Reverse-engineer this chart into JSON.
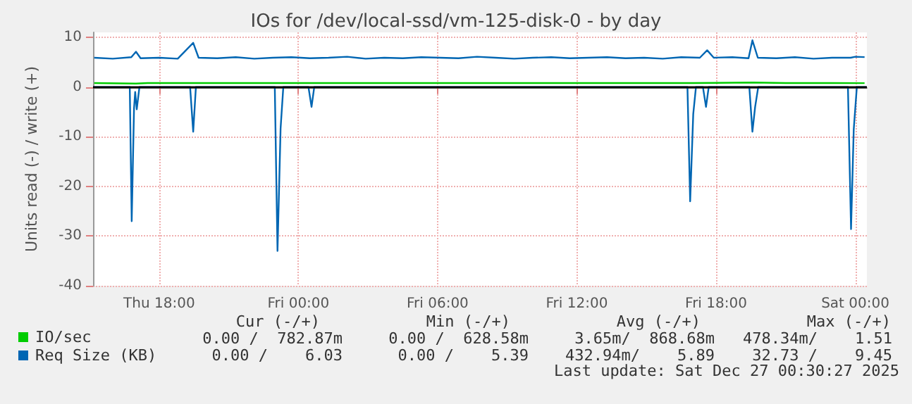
{
  "chart_data": {
    "type": "line",
    "title": "IOs for /dev/local-ssd/vm-125-disk-0 - by day",
    "ylabel": "Units read (-) / write (+)",
    "xlim": [
      "2025-12-25T15:09",
      "2025-12-27T00:30"
    ],
    "xticks": [
      {
        "value": "2025-12-25T18:00",
        "label": "Thu 18:00"
      },
      {
        "value": "2025-12-26T00:00",
        "label": "Fri 00:00"
      },
      {
        "value": "2025-12-26T06:00",
        "label": "Fri 06:00"
      },
      {
        "value": "2025-12-26T12:00",
        "label": "Fri 12:00"
      },
      {
        "value": "2025-12-26T18:00",
        "label": "Fri 18:00"
      },
      {
        "value": "2025-12-27T00:00",
        "label": "Sat 00:00"
      }
    ],
    "ylim": [
      -40,
      11
    ],
    "yticks": [
      -40,
      -30,
      -20,
      -10,
      0,
      10
    ],
    "grid": true,
    "legend": "bottom left",
    "marker": "none",
    "line_style": "solid",
    "ref_lines": [
      {
        "axis": "y",
        "value": 0,
        "color": "#000000"
      }
    ],
    "series": [
      {
        "name": "IO/sec",
        "color": "#00cc00",
        "x": [
          "2025-12-25T15:12",
          "2025-12-25T17:00",
          "2025-12-25T17:30",
          "2025-12-25T19:30",
          "2025-12-25T22:00",
          "2025-12-26T00:30",
          "2025-12-26T03:00",
          "2025-12-26T06:00",
          "2025-12-26T09:00",
          "2025-12-26T12:00",
          "2025-12-26T15:00",
          "2025-12-26T17:00",
          "2025-12-26T19:36",
          "2025-12-26T21:00",
          "2025-12-26T23:00",
          "2025-12-27T00:24"
        ],
        "values": [
          0.8,
          0.7,
          0.8,
          0.8,
          0.8,
          0.8,
          0.8,
          0.8,
          0.8,
          0.8,
          0.8,
          0.8,
          0.9,
          0.8,
          0.8,
          0.78
        ]
      },
      {
        "color": "#0066b3",
        "x": [
          "2025-12-25T15:09",
          "2025-12-25T16:44",
          "2025-12-25T16:49",
          "2025-12-25T16:55",
          "2025-12-25T16:58",
          "2025-12-25T17:02",
          "2025-12-25T17:09",
          "2025-12-25T19:20",
          "2025-12-25T19:28",
          "2025-12-25T19:35",
          "2025-12-25T22:59",
          "2025-12-25T23:06",
          "2025-12-25T23:14",
          "2025-12-25T23:21",
          "2025-12-26T00:26",
          "2025-12-26T00:34",
          "2025-12-26T00:41",
          "2025-12-26T16:46",
          "2025-12-26T16:53",
          "2025-12-26T17:01",
          "2025-12-26T17:08",
          "2025-12-26T17:26",
          "2025-12-26T17:34",
          "2025-12-26T17:41",
          "2025-12-26T19:26",
          "2025-12-26T19:34",
          "2025-12-26T19:41",
          "2025-12-26T19:49",
          "2025-12-26T23:41",
          "2025-12-26T23:49",
          "2025-12-26T23:56",
          "2025-12-27T00:04",
          "2025-12-27T00:29"
        ],
        "values": [
          0,
          0,
          -27,
          -4.3,
          -1,
          -4.5,
          0,
          0,
          -9,
          0,
          0,
          -33,
          -8.3,
          0,
          0,
          -4,
          0,
          0,
          -23,
          -5.4,
          0,
          0,
          -4,
          0,
          0,
          -9,
          -4,
          0,
          0,
          -28.6,
          -8.5,
          0,
          0
        ]
      },
      {
        "name": "Req Size (KB)",
        "color": "#0066b3",
        "x": [
          "2025-12-25T15:12",
          "2025-12-25T16:00",
          "2025-12-25T16:48",
          "2025-12-25T17:00",
          "2025-12-25T17:12",
          "2025-12-25T18:00",
          "2025-12-25T18:48",
          "2025-12-25T19:28",
          "2025-12-25T19:42",
          "2025-12-25T20:30",
          "2025-12-25T21:18",
          "2025-12-25T22:06",
          "2025-12-25T22:54",
          "2025-12-25T23:42",
          "2025-12-26T00:30",
          "2025-12-26T01:18",
          "2025-12-26T02:06",
          "2025-12-26T02:54",
          "2025-12-26T03:42",
          "2025-12-26T04:30",
          "2025-12-26T05:18",
          "2025-12-26T06:06",
          "2025-12-26T06:54",
          "2025-12-26T07:42",
          "2025-12-26T08:30",
          "2025-12-26T09:18",
          "2025-12-26T10:06",
          "2025-12-26T10:54",
          "2025-12-26T11:42",
          "2025-12-26T12:30",
          "2025-12-26T13:18",
          "2025-12-26T14:06",
          "2025-12-26T14:54",
          "2025-12-26T15:42",
          "2025-12-26T16:30",
          "2025-12-26T17:18",
          "2025-12-26T17:37",
          "2025-12-26T17:54",
          "2025-12-26T18:42",
          "2025-12-26T19:24",
          "2025-12-26T19:34",
          "2025-12-26T19:48",
          "2025-12-26T20:36",
          "2025-12-26T21:24",
          "2025-12-26T22:12",
          "2025-12-26T23:00",
          "2025-12-26T23:48",
          "2025-12-27T00:00",
          "2025-12-27T00:24"
        ],
        "values": [
          5.9,
          5.7,
          6.0,
          7.1,
          5.8,
          5.9,
          5.7,
          8.9,
          5.9,
          5.8,
          6.0,
          5.7,
          5.9,
          6.0,
          5.8,
          5.9,
          6.1,
          5.7,
          5.9,
          5.8,
          6.0,
          5.9,
          5.8,
          6.1,
          5.9,
          5.7,
          5.9,
          6.0,
          5.8,
          5.9,
          6.0,
          5.8,
          5.9,
          5.7,
          6.0,
          5.9,
          7.4,
          5.9,
          6.0,
          5.8,
          9.4,
          5.9,
          5.8,
          6.0,
          5.7,
          5.9,
          5.9,
          6.1,
          6.03
        ]
      }
    ],
    "annotations": [
      "Cur (-/+)",
      "Min (-/+)",
      "Avg (-/+)",
      "Max (-/+)",
      "0.00 /  782.87m",
      "0.00 /  628.58m",
      "3.65m/  868.68m",
      "478.34m/    1.51",
      "0.00 /    6.03",
      "0.00 /    5.39",
      "432.94m/    5.89",
      "32.73 /    9.45",
      "Last update: Sat Dec 27 00:30:27 2025"
    ]
  }
}
